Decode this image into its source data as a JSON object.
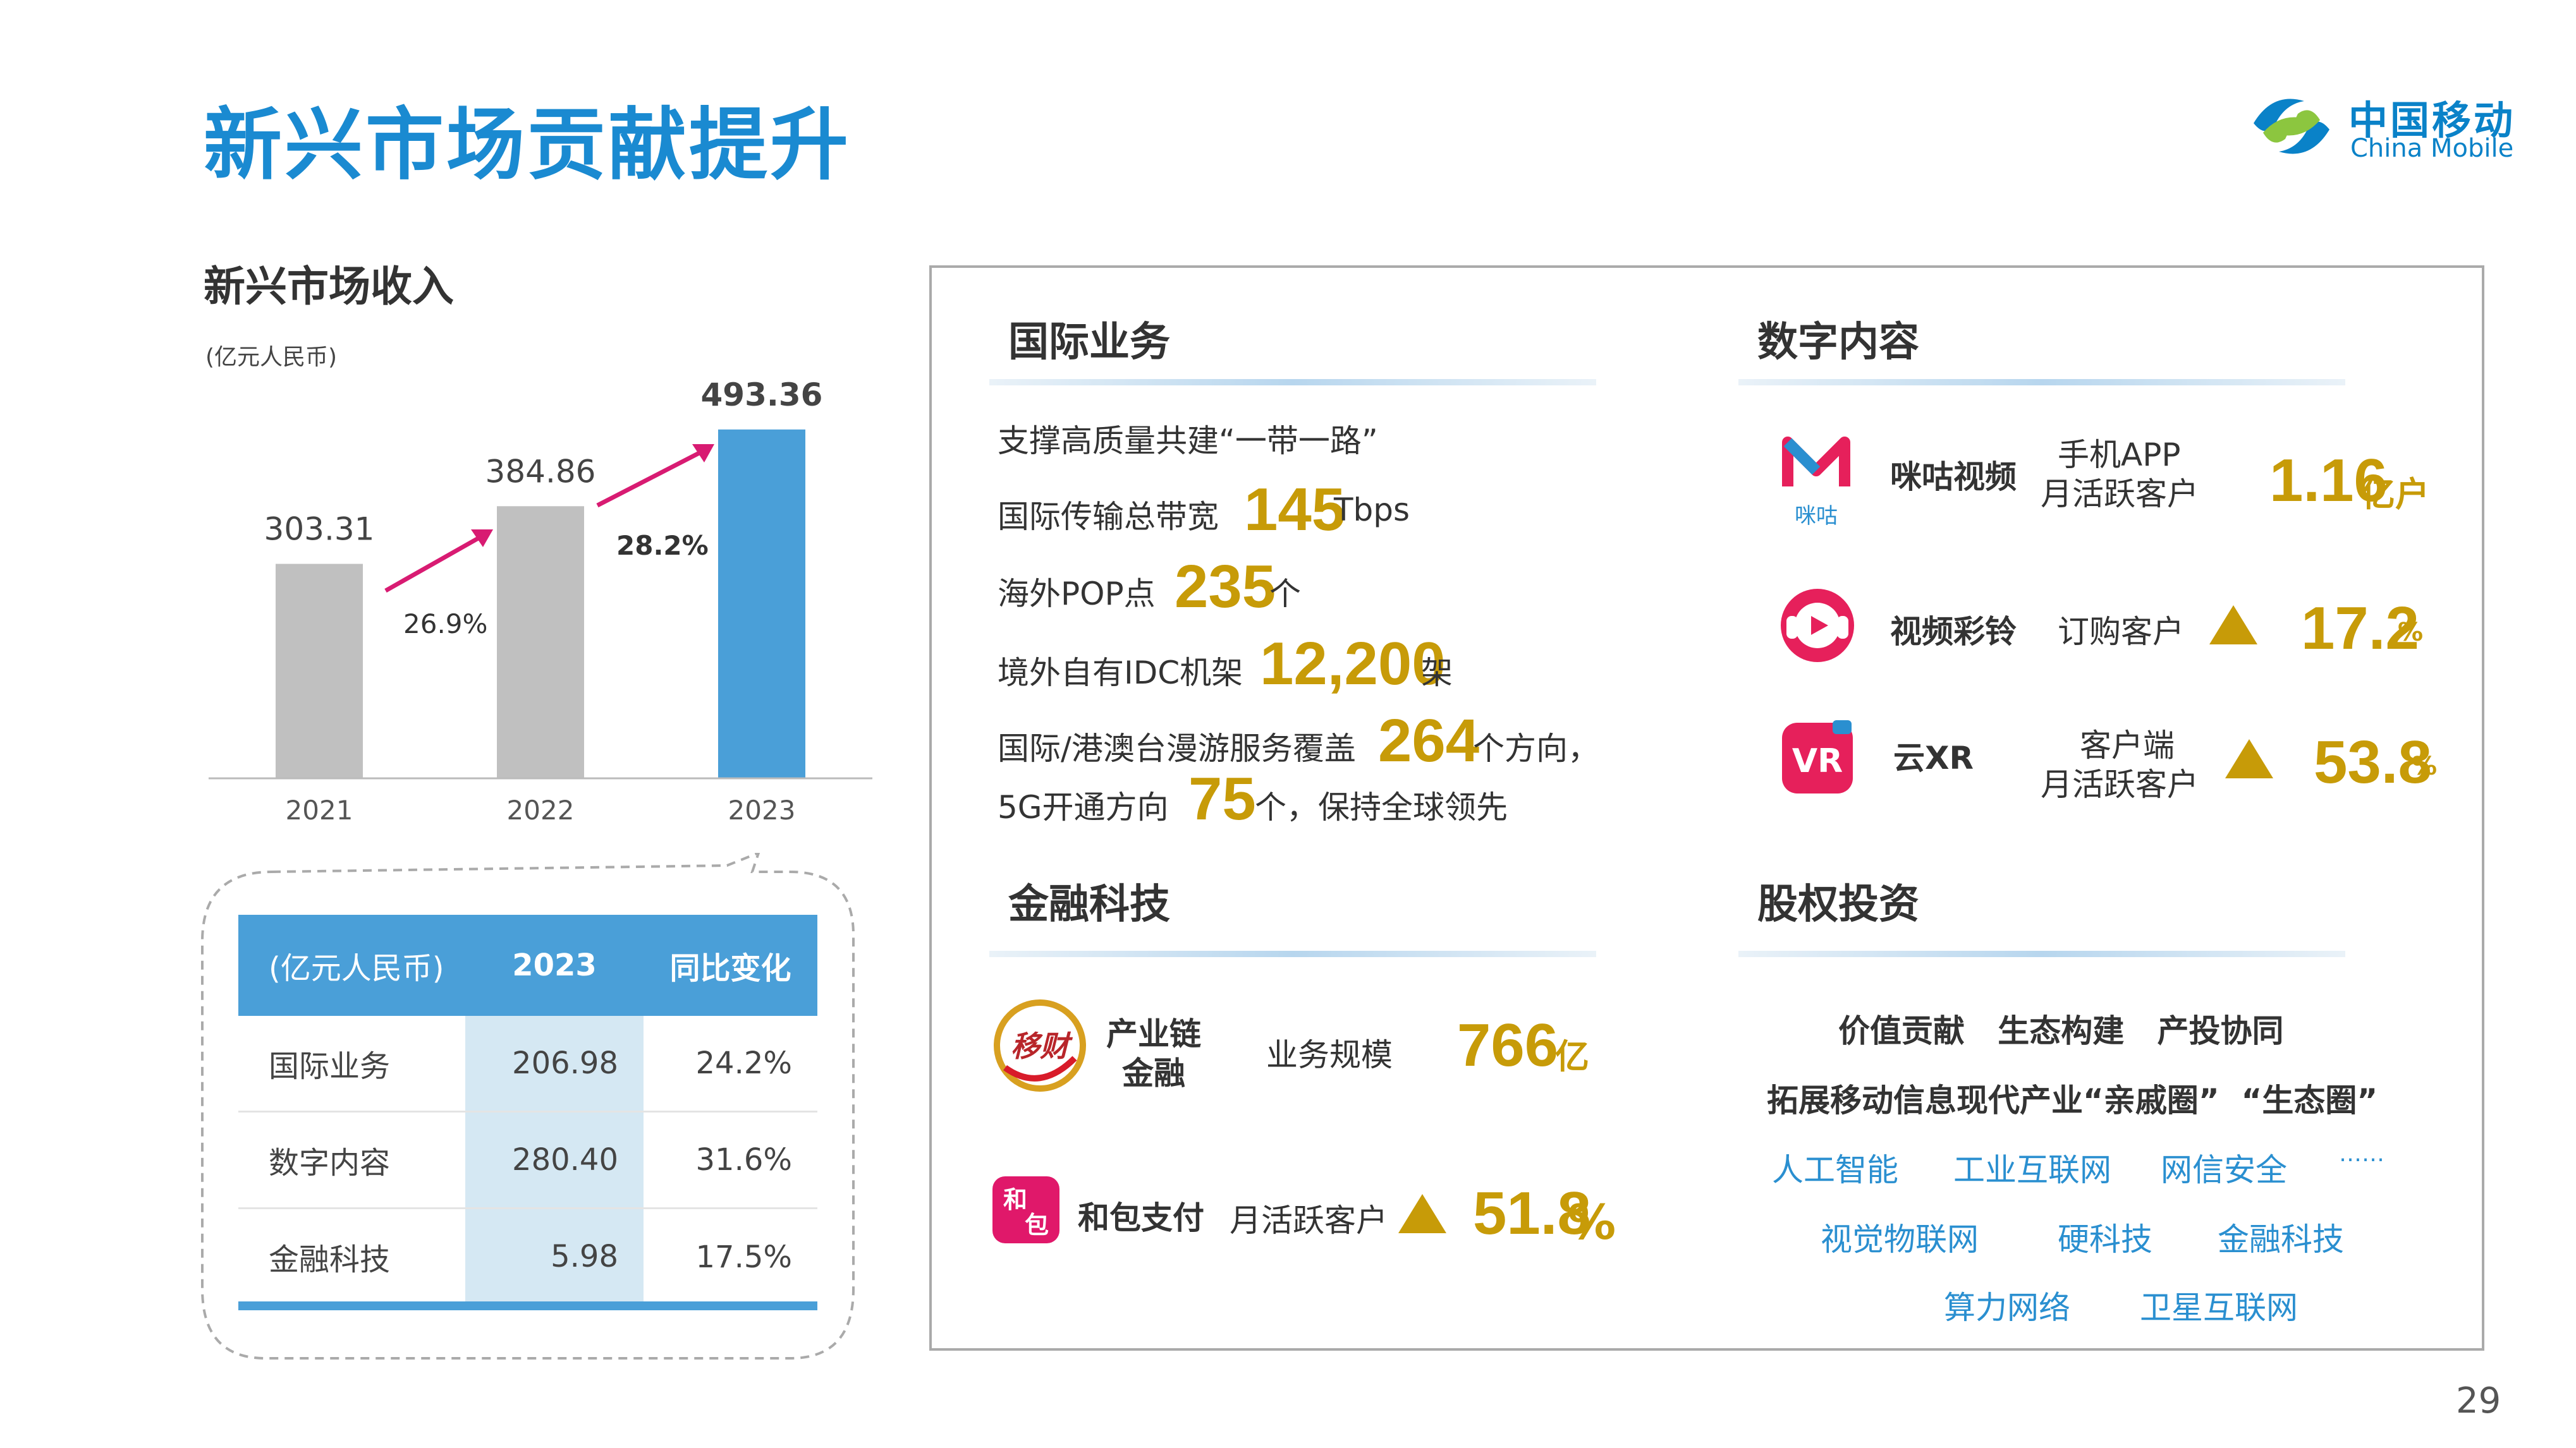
{
  "page": {
    "title": "新兴市场贡献提升",
    "page_number": "29",
    "logo": {
      "cn": "中国移动",
      "en": "China Mobile"
    }
  },
  "left": {
    "section_title": "新兴市场收入",
    "unit": "(亿元人民币)",
    "growth_labels": [
      "26.9%",
      "28.2%"
    ]
  },
  "chart_data": {
    "type": "bar",
    "categories": [
      "2021",
      "2022",
      "2023"
    ],
    "values": [
      303.31,
      384.86,
      493.36
    ],
    "value_labels": [
      "303.31",
      "384.86",
      "493.36"
    ],
    "colors": [
      "#c0c0c0",
      "#c0c0c0",
      "#4a9fd8"
    ],
    "ylim": [
      0,
      520
    ]
  },
  "table": {
    "headers": [
      "(亿元人民币)",
      "2023",
      "同比变化"
    ],
    "rows": [
      [
        "国际业务",
        "206.98",
        "24.2%"
      ],
      [
        "数字内容",
        "280.40",
        "31.6%"
      ],
      [
        "金融科技",
        "5.98",
        "17.5%"
      ]
    ]
  },
  "intl": {
    "title": "国际业务",
    "line1": "支撑高质量共建“一带一路”",
    "line2_pre": "国际传输总带宽",
    "line2_num": "145",
    "line2_unit": "Tbps",
    "line3_pre": "海外POP点",
    "line3_num": "235",
    "line3_unit": "个",
    "line4_pre": "境外自有IDC机架",
    "line4_num": "12,200",
    "line4_unit": "架",
    "line5_pre": "国际/港澳台漫游服务覆盖",
    "line5_num": "264",
    "line5_unit": "个方向，",
    "line6_pre": "5G开通方向",
    "line6_num": "75",
    "line6_unit": "个，保持全球领先"
  },
  "digital": {
    "title": "数字内容",
    "migu": {
      "name": "咪咕视频",
      "desc1": "手机APP",
      "desc2": "月活跃客户",
      "num": "1.16",
      "unit": "亿户",
      "icon_text": "咪咕"
    },
    "ringtone": {
      "name": "视频彩铃",
      "desc": "订购客户",
      "num": "17.2",
      "unit": "%"
    },
    "xr": {
      "name": "云XR",
      "desc1": "客户端",
      "desc2": "月活跃客户",
      "num": "53.8",
      "unit": "%",
      "icon_text": "VR"
    }
  },
  "fintech": {
    "title": "金融科技",
    "supply": {
      "name1": "产业链",
      "name2": "金融",
      "desc": "业务规模",
      "num": "766",
      "unit": "亿",
      "icon_text": "移财"
    },
    "hebao": {
      "name": "和包支付",
      "desc": "月活跃客户",
      "num": "51.8",
      "unit": "%",
      "icon_text1": "和",
      "icon_text2": "包"
    }
  },
  "equity": {
    "title": "股权投资",
    "line1": "价值贡献   生态构建   产投协同",
    "line2": "拓展移动信息现代产业“亲戚圈”  “生态圈”",
    "tags_row1": [
      "人工智能",
      "工业互联网",
      "网信安全",
      "……"
    ],
    "tags_row2": [
      "视觉物联网",
      "硬科技",
      "金融科技"
    ],
    "tags_row3": [
      "算力网络",
      "卫星互联网"
    ]
  }
}
